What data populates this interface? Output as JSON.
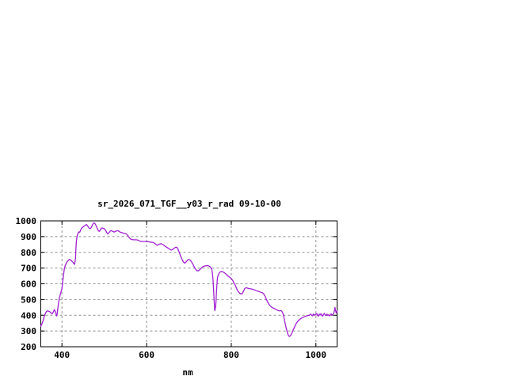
{
  "window": {
    "background": "#ffffff"
  },
  "chart_data": {
    "type": "line",
    "title": "sr_2026_071_TGF__y03_r_rad 09-10-00",
    "xlabel": "nm",
    "ylabel": "",
    "xlim": [
      350,
      1050
    ],
    "ylim": [
      200,
      1000
    ],
    "x_ticks": [
      400,
      600,
      800,
      1000
    ],
    "y_ticks": [
      200,
      300,
      400,
      500,
      600,
      700,
      800,
      900,
      1000
    ],
    "grid": true,
    "legend_position": "none",
    "colors": {
      "curve": "#A020D0",
      "axis": "#000000",
      "grid": "#909090",
      "text": "#000000",
      "background": "#ffffff"
    },
    "series": [
      {
        "name": "sr_2026_071_TGF__y03_r_rad",
        "points": [
          [
            350,
            330
          ],
          [
            353,
            348
          ],
          [
            356,
            370
          ],
          [
            359,
            400
          ],
          [
            362,
            418
          ],
          [
            365,
            428
          ],
          [
            368,
            426
          ],
          [
            371,
            423
          ],
          [
            374,
            416
          ],
          [
            377,
            410
          ],
          [
            380,
            422
          ],
          [
            382,
            436
          ],
          [
            384,
            425
          ],
          [
            386,
            408
          ],
          [
            388,
            395
          ],
          [
            390,
            440
          ],
          [
            392,
            480
          ],
          [
            394,
            510
          ],
          [
            396,
            532
          ],
          [
            398,
            550
          ],
          [
            400,
            570
          ],
          [
            402,
            620
          ],
          [
            404,
            665
          ],
          [
            406,
            700
          ],
          [
            408,
            718
          ],
          [
            410,
            730
          ],
          [
            412,
            740
          ],
          [
            414,
            746
          ],
          [
            416,
            752
          ],
          [
            418,
            755
          ],
          [
            420,
            753
          ],
          [
            422,
            748
          ],
          [
            424,
            742
          ],
          [
            426,
            738
          ],
          [
            428,
            728
          ],
          [
            430,
            724
          ],
          [
            432,
            760
          ],
          [
            433,
            820
          ],
          [
            434,
            870
          ],
          [
            436,
            905
          ],
          [
            438,
            922
          ],
          [
            440,
            930
          ],
          [
            442,
            928
          ],
          [
            444,
            940
          ],
          [
            446,
            952
          ],
          [
            448,
            958
          ],
          [
            450,
            962
          ],
          [
            452,
            966
          ],
          [
            454,
            970
          ],
          [
            456,
            974
          ],
          [
            458,
            977
          ],
          [
            460,
            970
          ],
          [
            462,
            963
          ],
          [
            464,
            955
          ],
          [
            466,
            950
          ],
          [
            468,
            953
          ],
          [
            470,
            962
          ],
          [
            472,
            975
          ],
          [
            474,
            984
          ],
          [
            476,
            987
          ],
          [
            478,
            983
          ],
          [
            480,
            973
          ],
          [
            482,
            960
          ],
          [
            484,
            948
          ],
          [
            486,
            938
          ],
          [
            488,
            933
          ],
          [
            490,
            940
          ],
          [
            492,
            950
          ],
          [
            494,
            955
          ],
          [
            496,
            954
          ],
          [
            498,
            952
          ],
          [
            500,
            950
          ],
          [
            502,
            943
          ],
          [
            504,
            936
          ],
          [
            506,
            925
          ],
          [
            508,
            918
          ],
          [
            510,
            922
          ],
          [
            512,
            928
          ],
          [
            514,
            934
          ],
          [
            516,
            938
          ],
          [
            518,
            936
          ],
          [
            520,
            933
          ],
          [
            523,
            929
          ],
          [
            526,
            932
          ],
          [
            529,
            936
          ],
          [
            532,
            938
          ],
          [
            535,
            933
          ],
          [
            538,
            928
          ],
          [
            541,
            925
          ],
          [
            544,
            923
          ],
          [
            547,
            921
          ],
          [
            550,
            919
          ],
          [
            553,
            915
          ],
          [
            556,
            905
          ],
          [
            559,
            893
          ],
          [
            562,
            885
          ],
          [
            565,
            882
          ],
          [
            568,
            880
          ],
          [
            571,
            880
          ],
          [
            574,
            880
          ],
          [
            577,
            879
          ],
          [
            580,
            877
          ],
          [
            583,
            873
          ],
          [
            586,
            870
          ],
          [
            589,
            869
          ],
          [
            592,
            869
          ],
          [
            595,
            869
          ],
          [
            598,
            868
          ],
          [
            601,
            868
          ],
          [
            604,
            868
          ],
          [
            607,
            866
          ],
          [
            610,
            865
          ],
          [
            613,
            864
          ],
          [
            616,
            862
          ],
          [
            619,
            857
          ],
          [
            622,
            850
          ],
          [
            625,
            845
          ],
          [
            628,
            849
          ],
          [
            631,
            853
          ],
          [
            634,
            855
          ],
          [
            637,
            851
          ],
          [
            640,
            847
          ],
          [
            643,
            840
          ],
          [
            646,
            835
          ],
          [
            649,
            830
          ],
          [
            652,
            825
          ],
          [
            655,
            819
          ],
          [
            658,
            814
          ],
          [
            661,
            817
          ],
          [
            664,
            824
          ],
          [
            667,
            830
          ],
          [
            670,
            833
          ],
          [
            673,
            827
          ],
          [
            676,
            808
          ],
          [
            679,
            785
          ],
          [
            682,
            765
          ],
          [
            685,
            748
          ],
          [
            688,
            736
          ],
          [
            690,
            732
          ],
          [
            692,
            735
          ],
          [
            694,
            741
          ],
          [
            696,
            748
          ],
          [
            698,
            753
          ],
          [
            700,
            755
          ],
          [
            702,
            753
          ],
          [
            704,
            748
          ],
          [
            706,
            740
          ],
          [
            708,
            730
          ],
          [
            710,
            722
          ],
          [
            712,
            710
          ],
          [
            714,
            700
          ],
          [
            716,
            692
          ],
          [
            718,
            686
          ],
          [
            720,
            683
          ],
          [
            722,
            682
          ],
          [
            724,
            686
          ],
          [
            726,
            691
          ],
          [
            728,
            697
          ],
          [
            730,
            702
          ],
          [
            732,
            707
          ],
          [
            734,
            710
          ],
          [
            736,
            712
          ],
          [
            738,
            713
          ],
          [
            740,
            714
          ],
          [
            742,
            715
          ],
          [
            744,
            715
          ],
          [
            746,
            714
          ],
          [
            748,
            712
          ],
          [
            750,
            708
          ],
          [
            752,
            702
          ],
          [
            754,
            690
          ],
          [
            756,
            655
          ],
          [
            757,
            620
          ],
          [
            758,
            575
          ],
          [
            759,
            525
          ],
          [
            760,
            470
          ],
          [
            761,
            430
          ],
          [
            762,
            438
          ],
          [
            763,
            455
          ],
          [
            764,
            490
          ],
          [
            765,
            545
          ],
          [
            766,
            590
          ],
          [
            767,
            625
          ],
          [
            768,
            645
          ],
          [
            770,
            660
          ],
          [
            772,
            670
          ],
          [
            774,
            675
          ],
          [
            776,
            678
          ],
          [
            778,
            677
          ],
          [
            780,
            676
          ],
          [
            782,
            674
          ],
          [
            784,
            670
          ],
          [
            786,
            666
          ],
          [
            788,
            660
          ],
          [
            790,
            655
          ],
          [
            792,
            650
          ],
          [
            794,
            646
          ],
          [
            796,
            642
          ],
          [
            798,
            638
          ],
          [
            800,
            633
          ],
          [
            802,
            626
          ],
          [
            804,
            618
          ],
          [
            806,
            608
          ],
          [
            808,
            598
          ],
          [
            810,
            588
          ],
          [
            812,
            575
          ],
          [
            814,
            562
          ],
          [
            816,
            552
          ],
          [
            818,
            545
          ],
          [
            820,
            540
          ],
          [
            822,
            537
          ],
          [
            824,
            535
          ],
          [
            826,
            538
          ],
          [
            828,
            548
          ],
          [
            830,
            560
          ],
          [
            832,
            570
          ],
          [
            834,
            574
          ],
          [
            836,
            575
          ],
          [
            838,
            573
          ],
          [
            840,
            571
          ],
          [
            842,
            570
          ],
          [
            844,
            569
          ],
          [
            846,
            568
          ],
          [
            848,
            567
          ],
          [
            850,
            566
          ],
          [
            852,
            564
          ],
          [
            854,
            562
          ],
          [
            856,
            560
          ],
          [
            858,
            558
          ],
          [
            860,
            556
          ],
          [
            862,
            554
          ],
          [
            864,
            552
          ],
          [
            866,
            550
          ],
          [
            868,
            548
          ],
          [
            870,
            546
          ],
          [
            872,
            544
          ],
          [
            874,
            542
          ],
          [
            876,
            538
          ],
          [
            878,
            530
          ],
          [
            880,
            520
          ],
          [
            882,
            508
          ],
          [
            884,
            496
          ],
          [
            886,
            484
          ],
          [
            888,
            474
          ],
          [
            890,
            466
          ],
          [
            892,
            460
          ],
          [
            894,
            455
          ],
          [
            896,
            450
          ],
          [
            898,
            447
          ],
          [
            900,
            445
          ],
          [
            902,
            442
          ],
          [
            904,
            440
          ],
          [
            906,
            438
          ],
          [
            908,
            434
          ],
          [
            910,
            431
          ],
          [
            912,
            429
          ],
          [
            914,
            428
          ],
          [
            916,
            429
          ],
          [
            918,
            430
          ],
          [
            920,
            424
          ],
          [
            922,
            412
          ],
          [
            924,
            392
          ],
          [
            926,
            368
          ],
          [
            928,
            340
          ],
          [
            930,
            315
          ],
          [
            932,
            295
          ],
          [
            934,
            278
          ],
          [
            936,
            269
          ],
          [
            937,
            266
          ],
          [
            938,
            267
          ],
          [
            940,
            271
          ],
          [
            942,
            280
          ],
          [
            944,
            292
          ],
          [
            946,
            305
          ],
          [
            948,
            317
          ],
          [
            950,
            328
          ],
          [
            952,
            340
          ],
          [
            954,
            350
          ],
          [
            956,
            358
          ],
          [
            958,
            364
          ],
          [
            960,
            369
          ],
          [
            963,
            376
          ],
          [
            966,
            382
          ],
          [
            969,
            387
          ],
          [
            972,
            390
          ],
          [
            975,
            393
          ],
          [
            978,
            396
          ],
          [
            981,
            398
          ],
          [
            984,
            400
          ],
          [
            986,
            404
          ],
          [
            988,
            408
          ],
          [
            990,
            400
          ],
          [
            992,
            396
          ],
          [
            994,
            408
          ],
          [
            996,
            404
          ],
          [
            998,
            400
          ],
          [
            1000,
            406
          ],
          [
            1002,
            412
          ],
          [
            1004,
            400
          ],
          [
            1006,
            394
          ],
          [
            1008,
            408
          ],
          [
            1010,
            402
          ],
          [
            1012,
            410
          ],
          [
            1014,
            398
          ],
          [
            1016,
            394
          ],
          [
            1018,
            406
          ],
          [
            1020,
            412
          ],
          [
            1022,
            402
          ],
          [
            1024,
            398
          ],
          [
            1026,
            408
          ],
          [
            1028,
            400
          ],
          [
            1030,
            404
          ],
          [
            1032,
            396
          ],
          [
            1034,
            402
          ],
          [
            1036,
            410
          ],
          [
            1038,
            400
          ],
          [
            1040,
            405
          ],
          [
            1042,
            412
          ],
          [
            1044,
            430
          ],
          [
            1045,
            450
          ],
          [
            1046,
            435
          ],
          [
            1048,
            415
          ],
          [
            1050,
            428
          ]
        ]
      }
    ]
  }
}
